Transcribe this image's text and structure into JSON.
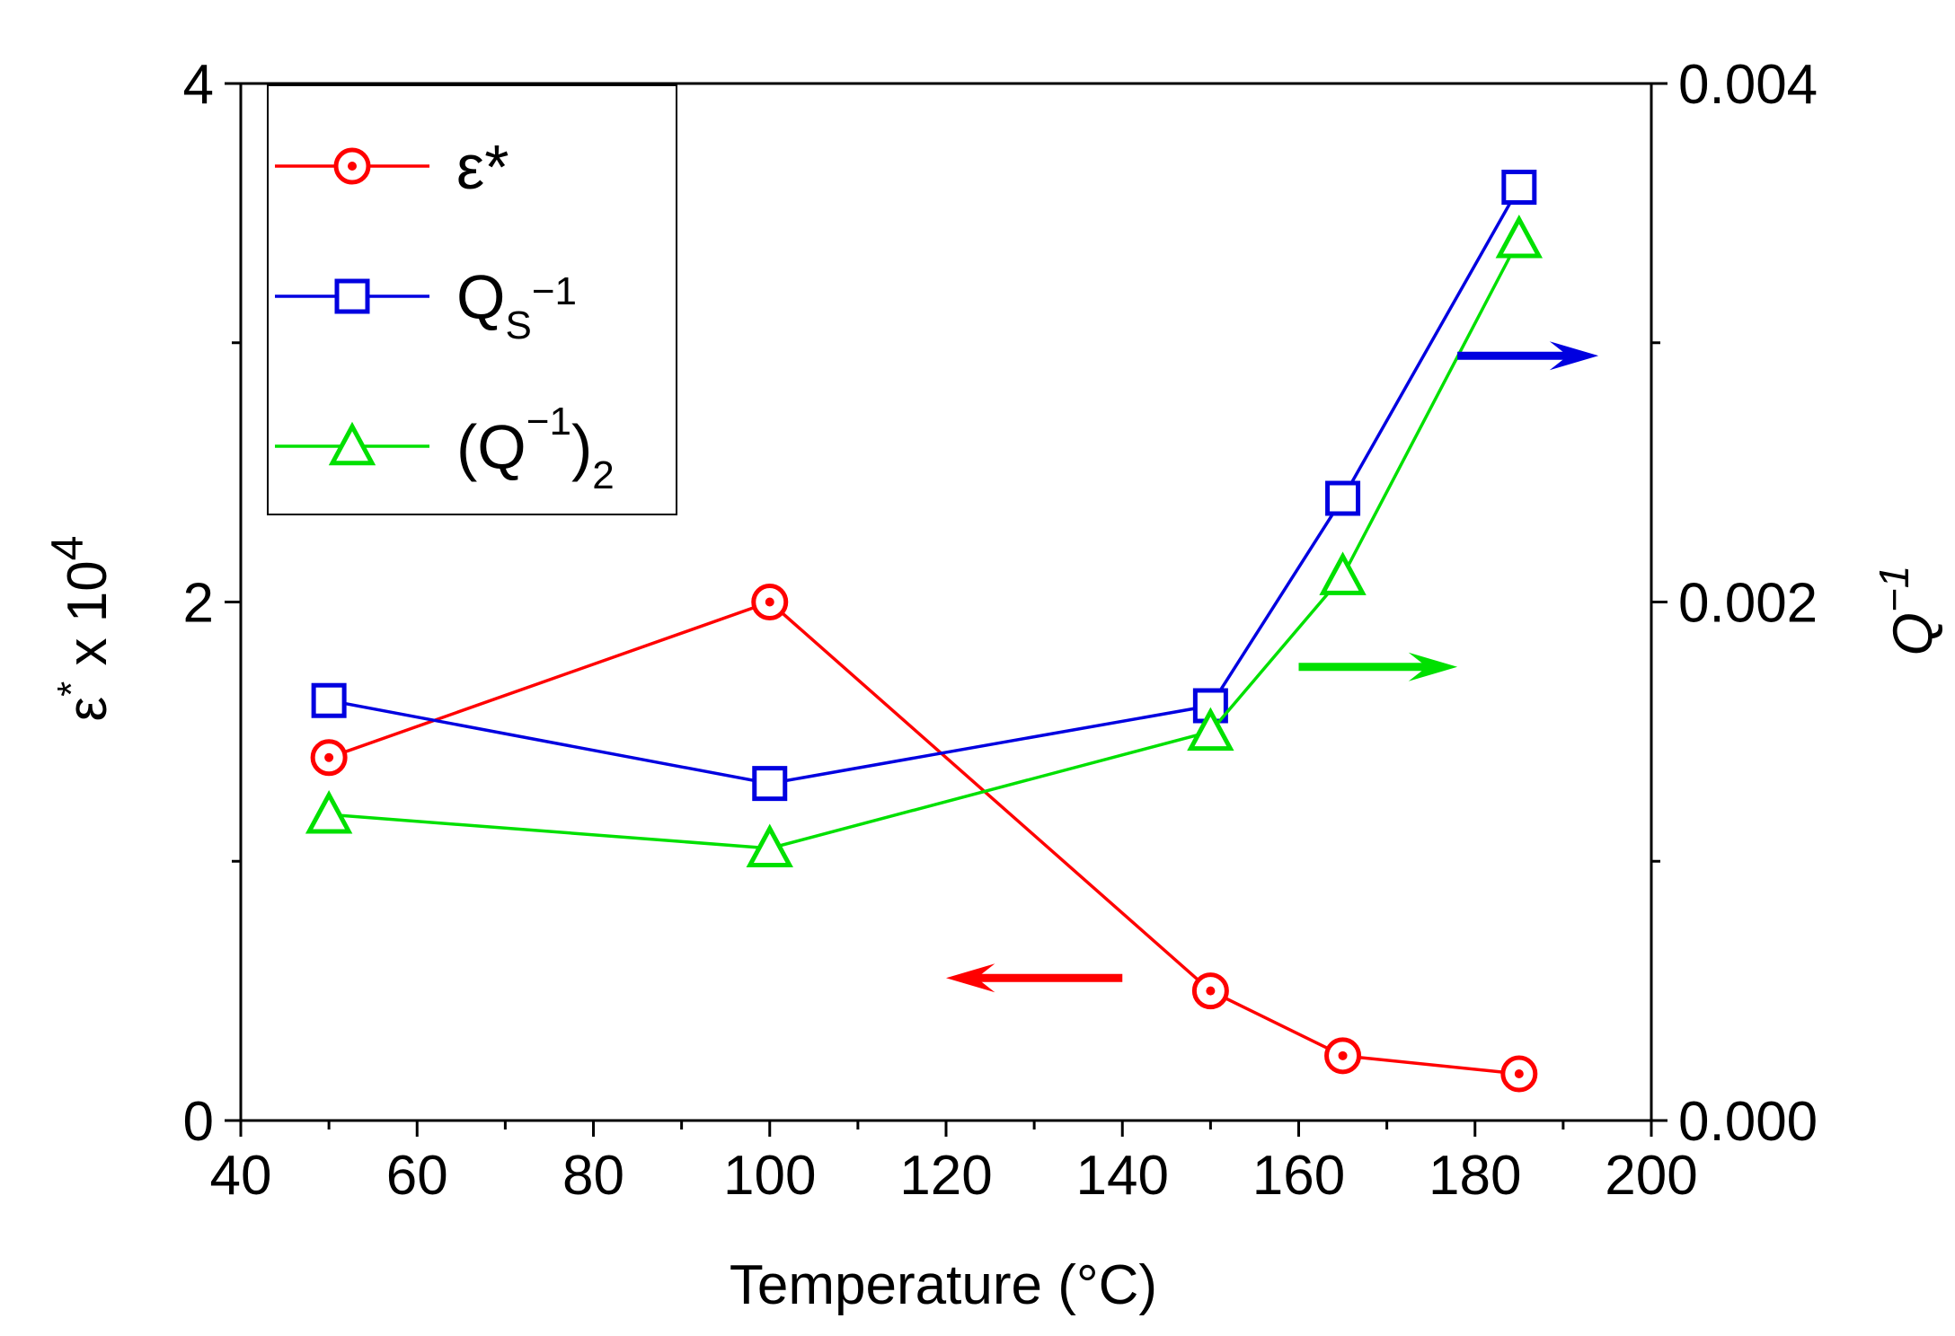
{
  "chart_data": {
    "type": "line",
    "title": "",
    "xlabel": "Temperature (°C)",
    "ylabel_left": {
      "base": "ε",
      "sup1": "*",
      "mid": " x 10",
      "sup2": "4"
    },
    "ylabel_right": {
      "base": "Q",
      "sup": "−1"
    },
    "xlim": [
      40,
      200
    ],
    "ylim_left": [
      0,
      4
    ],
    "ylim_right": [
      0.0,
      0.004
    ],
    "x_ticks": [
      "40",
      "60",
      "80",
      "100",
      "120",
      "140",
      "160",
      "180",
      "200"
    ],
    "y_left_ticks": [
      "0",
      "2",
      "4"
    ],
    "y_right_ticks": [
      "0.000",
      "0.002",
      "0.004"
    ],
    "grid": false,
    "legend_position": "top-left",
    "series": [
      {
        "name": "ε*",
        "axis": "left",
        "color": "#ff0000",
        "marker": "circle-dot",
        "x": [
          50,
          100,
          150,
          165,
          185
        ],
        "values": [
          1.4,
          2.0,
          0.5,
          0.25,
          0.18
        ]
      },
      {
        "name": "Qs−1",
        "axis": "right",
        "color": "#0000e0",
        "marker": "square",
        "x": [
          50,
          100,
          150,
          165,
          185
        ],
        "values": [
          0.00162,
          0.0013,
          0.0016,
          0.0024,
          0.0036
        ]
      },
      {
        "name": "(Q−1)2",
        "axis": "right",
        "color": "#00e000",
        "marker": "triangle",
        "x": [
          50,
          100,
          150,
          165,
          185
        ],
        "values": [
          0.00118,
          0.00105,
          0.0015,
          0.0021,
          0.0034
        ]
      }
    ],
    "legend": [
      {
        "parts": [
          {
            "t": "ε*",
            "s": "n"
          }
        ]
      },
      {
        "parts": [
          {
            "t": "Q",
            "s": "n"
          },
          {
            "t": "S",
            "s": "sub"
          },
          {
            "t": "−1",
            "s": "sup"
          }
        ]
      },
      {
        "parts": [
          {
            "t": "(Q",
            "s": "n"
          },
          {
            "t": "−1",
            "s": "sup"
          },
          {
            "t": ")",
            "s": "n"
          },
          {
            "t": "2",
            "s": "sub"
          }
        ]
      }
    ],
    "annotations": [
      {
        "type": "arrow",
        "direction": "left",
        "color": "#ff0000",
        "points_to": "left axis",
        "x": [
          140,
          120
        ],
        "y_left": 0.55
      },
      {
        "type": "arrow",
        "direction": "right",
        "color": "#00e000",
        "points_to": "right axis",
        "x": [
          160,
          178
        ],
        "y_left": 1.75
      },
      {
        "type": "arrow",
        "direction": "right",
        "color": "#0000e0",
        "points_to": "right axis",
        "x": [
          178,
          194
        ],
        "y_left": 2.95
      }
    ]
  }
}
